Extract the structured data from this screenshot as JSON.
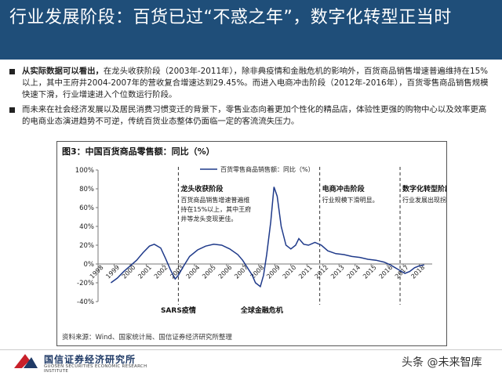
{
  "title": "行业发展阶段：百货已过“不惑之年”，数字化转型正当时",
  "bullets": [
    {
      "lead": "从实际数据可以看出，",
      "text": "在龙头收获阶段（2003年-2011年），除非典疫情和金融危机的影响外，百货商品销售增速普遍维持在15%以上，其中王府井2004-2007年的营收复合增速达到29.45%。而进入电商冲击阶段（2012年-2016年），百货零售商品销售规模快速下滑，行业增速进入个位数运行阶段。"
    },
    {
      "lead": "",
      "text": "而未来在社会经济发展以及居民消费习惯变迁的背景下，零售业态向着更加个性化的精品店，体验性更强的购物中心以及效率更高的电商业态演进趋势不可逆，传统百货业态整体仍面临一定的客流流失压力。"
    }
  ],
  "chart": {
    "title": "图3：中国百货商品零售额：同比（%）",
    "source": "资料来源：Wind、国家统计局、国信证券经济研究所整理"
  },
  "chart_data": {
    "type": "line",
    "title": "图3：中国百货商品零售额：同比（%）",
    "ylim": [
      -40,
      100
    ],
    "yticks": [
      -40,
      -20,
      0,
      20,
      40,
      60,
      80,
      100
    ],
    "ytick_labels": [
      "-40%",
      "-20%",
      "0%",
      "20%",
      "40%",
      "60%",
      "80%",
      "100%"
    ],
    "xlim": [
      1998,
      2018.8
    ],
    "xticks": [
      1998,
      1999,
      2000,
      2001,
      2002,
      2003,
      2004,
      2005,
      2006,
      2007,
      2008,
      2009,
      2010,
      2011,
      2012,
      2013,
      2014,
      2015,
      2016,
      2017,
      2018
    ],
    "grid": false,
    "legend_position": "top",
    "series": [
      {
        "name": "百货零售商品销售额：同比（%）",
        "color": "#1f3a8a",
        "points": [
          [
            1998.8,
            -20
          ],
          [
            1999.2,
            -15
          ],
          [
            1999.6,
            -8
          ],
          [
            2000.0,
            -2
          ],
          [
            2000.4,
            4
          ],
          [
            2000.8,
            12
          ],
          [
            2001.2,
            19
          ],
          [
            2001.5,
            21
          ],
          [
            2001.9,
            17
          ],
          [
            2002.2,
            6
          ],
          [
            2002.5,
            -6
          ],
          [
            2002.8,
            -16
          ],
          [
            2003.0,
            -12
          ],
          [
            2003.3,
            -3
          ],
          [
            2003.7,
            8
          ],
          [
            2004.2,
            15
          ],
          [
            2004.7,
            19
          ],
          [
            2005.2,
            21
          ],
          [
            2005.7,
            20
          ],
          [
            2006.2,
            16
          ],
          [
            2006.7,
            10
          ],
          [
            2007.0,
            4
          ],
          [
            2007.3,
            -4
          ],
          [
            2007.6,
            -12
          ],
          [
            2007.8,
            -20
          ],
          [
            2008.1,
            -24
          ],
          [
            2008.3,
            -12
          ],
          [
            2008.5,
            10
          ],
          [
            2008.75,
            45
          ],
          [
            2008.95,
            82
          ],
          [
            2009.15,
            72
          ],
          [
            2009.4,
            40
          ],
          [
            2009.7,
            20
          ],
          [
            2010.0,
            16
          ],
          [
            2010.3,
            20
          ],
          [
            2010.5,
            27
          ],
          [
            2010.8,
            21
          ],
          [
            2011.1,
            20
          ],
          [
            2011.5,
            23
          ],
          [
            2011.9,
            20
          ],
          [
            2012.3,
            14
          ],
          [
            2012.8,
            11
          ],
          [
            2013.3,
            10
          ],
          [
            2013.8,
            8
          ],
          [
            2014.3,
            7
          ],
          [
            2014.8,
            5
          ],
          [
            2015.3,
            4
          ],
          [
            2015.8,
            2
          ],
          [
            2016.2,
            -1
          ],
          [
            2016.5,
            -4
          ],
          [
            2016.8,
            -7
          ],
          [
            2017.1,
            -10
          ],
          [
            2017.4,
            -8
          ],
          [
            2017.7,
            -4
          ],
          [
            2018.0,
            -2
          ],
          [
            2018.3,
            -1
          ]
        ]
      }
    ],
    "annotations": [
      {
        "label": "SARS疫情",
        "x": 2003,
        "y": -40
      },
      {
        "label": "全球金融危机",
        "x": 2008.2,
        "y": -40
      }
    ],
    "phases": [
      {
        "x_start": 2003,
        "title": "龙头收获阶段",
        "desc": [
          "百货商品销售增速普遍维",
          "持在15%以上，其中王府",
          "井等龙头变现更佳。"
        ]
      },
      {
        "x_start": 2011.8,
        "title": "电商冲击阶段",
        "desc": [
          "行业规模下滑明显。"
        ]
      },
      {
        "x_start": 2016.8,
        "title": "数字化转型阶段",
        "desc": [
          "行业发展出现拐头趋势。"
        ]
      }
    ],
    "phase_dividers": [
      2003,
      2011.8,
      2016.8
    ]
  },
  "footer": {
    "logo_cn": "国信证券经济研究所",
    "logo_en": "GUOSEN SECURITIES ECONOMIC RESEARCH INSTITUTE",
    "logo_icon": "guosen-logo-icon",
    "watermark": "头条 @未来智库"
  }
}
